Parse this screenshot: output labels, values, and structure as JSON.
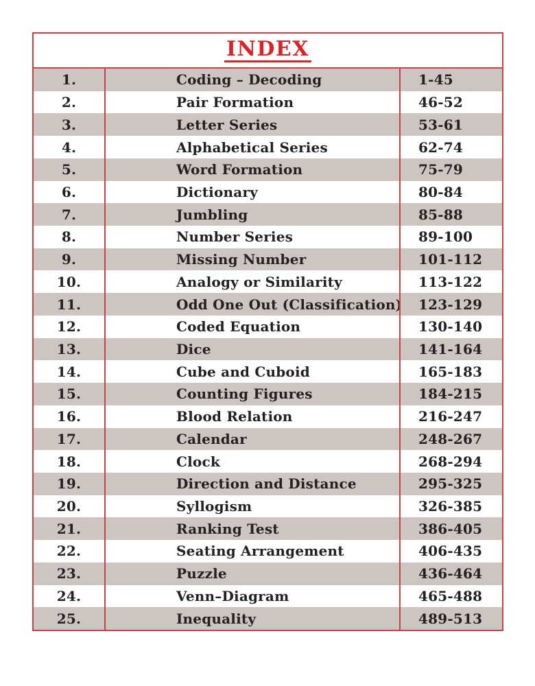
{
  "title": "INDEX",
  "colors": {
    "border_red": "#c64343",
    "title_red": "#dd2227",
    "row_gray": "#ccc5c1",
    "text_black": "#241f21"
  },
  "index": {
    "rows": [
      {
        "num": "1.",
        "topic": "Coding – Decoding",
        "pages": "1-45"
      },
      {
        "num": "2.",
        "topic": "Pair Formation",
        "pages": "46-52"
      },
      {
        "num": "3.",
        "topic": "Letter Series",
        "pages": "53-61"
      },
      {
        "num": "4.",
        "topic": "Alphabetical Series",
        "pages": "62-74"
      },
      {
        "num": "5.",
        "topic": "Word Formation",
        "pages": "75-79"
      },
      {
        "num": "6.",
        "topic": "Dictionary",
        "pages": "80-84"
      },
      {
        "num": "7.",
        "topic": "Jumbling",
        "pages": "85-88"
      },
      {
        "num": "8.",
        "topic": "Number Series",
        "pages": "89-100"
      },
      {
        "num": "9.",
        "topic": "Missing Number",
        "pages": "101-112"
      },
      {
        "num": "10.",
        "topic": "Analogy or Similarity",
        "pages": "113-122"
      },
      {
        "num": "11.",
        "topic": "Odd One Out (Classification)",
        "pages": "123-129"
      },
      {
        "num": "12.",
        "topic": "Coded Equation",
        "pages": "130-140"
      },
      {
        "num": "13.",
        "topic": "Dice",
        "pages": "141-164"
      },
      {
        "num": "14.",
        "topic": "Cube and Cuboid",
        "pages": "165-183"
      },
      {
        "num": "15.",
        "topic": "Counting Figures",
        "pages": "184-215"
      },
      {
        "num": "16.",
        "topic": "Blood Relation",
        "pages": "216-247"
      },
      {
        "num": "17.",
        "topic": "Calendar",
        "pages": "248-267"
      },
      {
        "num": "18.",
        "topic": "Clock",
        "pages": "268-294"
      },
      {
        "num": "19.",
        "topic": "Direction and Distance",
        "pages": "295-325"
      },
      {
        "num": "20.",
        "topic": "Syllogism",
        "pages": "326-385"
      },
      {
        "num": "21.",
        "topic": "Ranking Test",
        "pages": "386-405"
      },
      {
        "num": "22.",
        "topic": "Seating Arrangement",
        "pages": "406-435"
      },
      {
        "num": "23.",
        "topic": "Puzzle",
        "pages": "436-464"
      },
      {
        "num": "24.",
        "topic": "Venn–Diagram",
        "pages": "465-488"
      },
      {
        "num": "25.",
        "topic": "Inequality",
        "pages": "489-513"
      }
    ]
  }
}
